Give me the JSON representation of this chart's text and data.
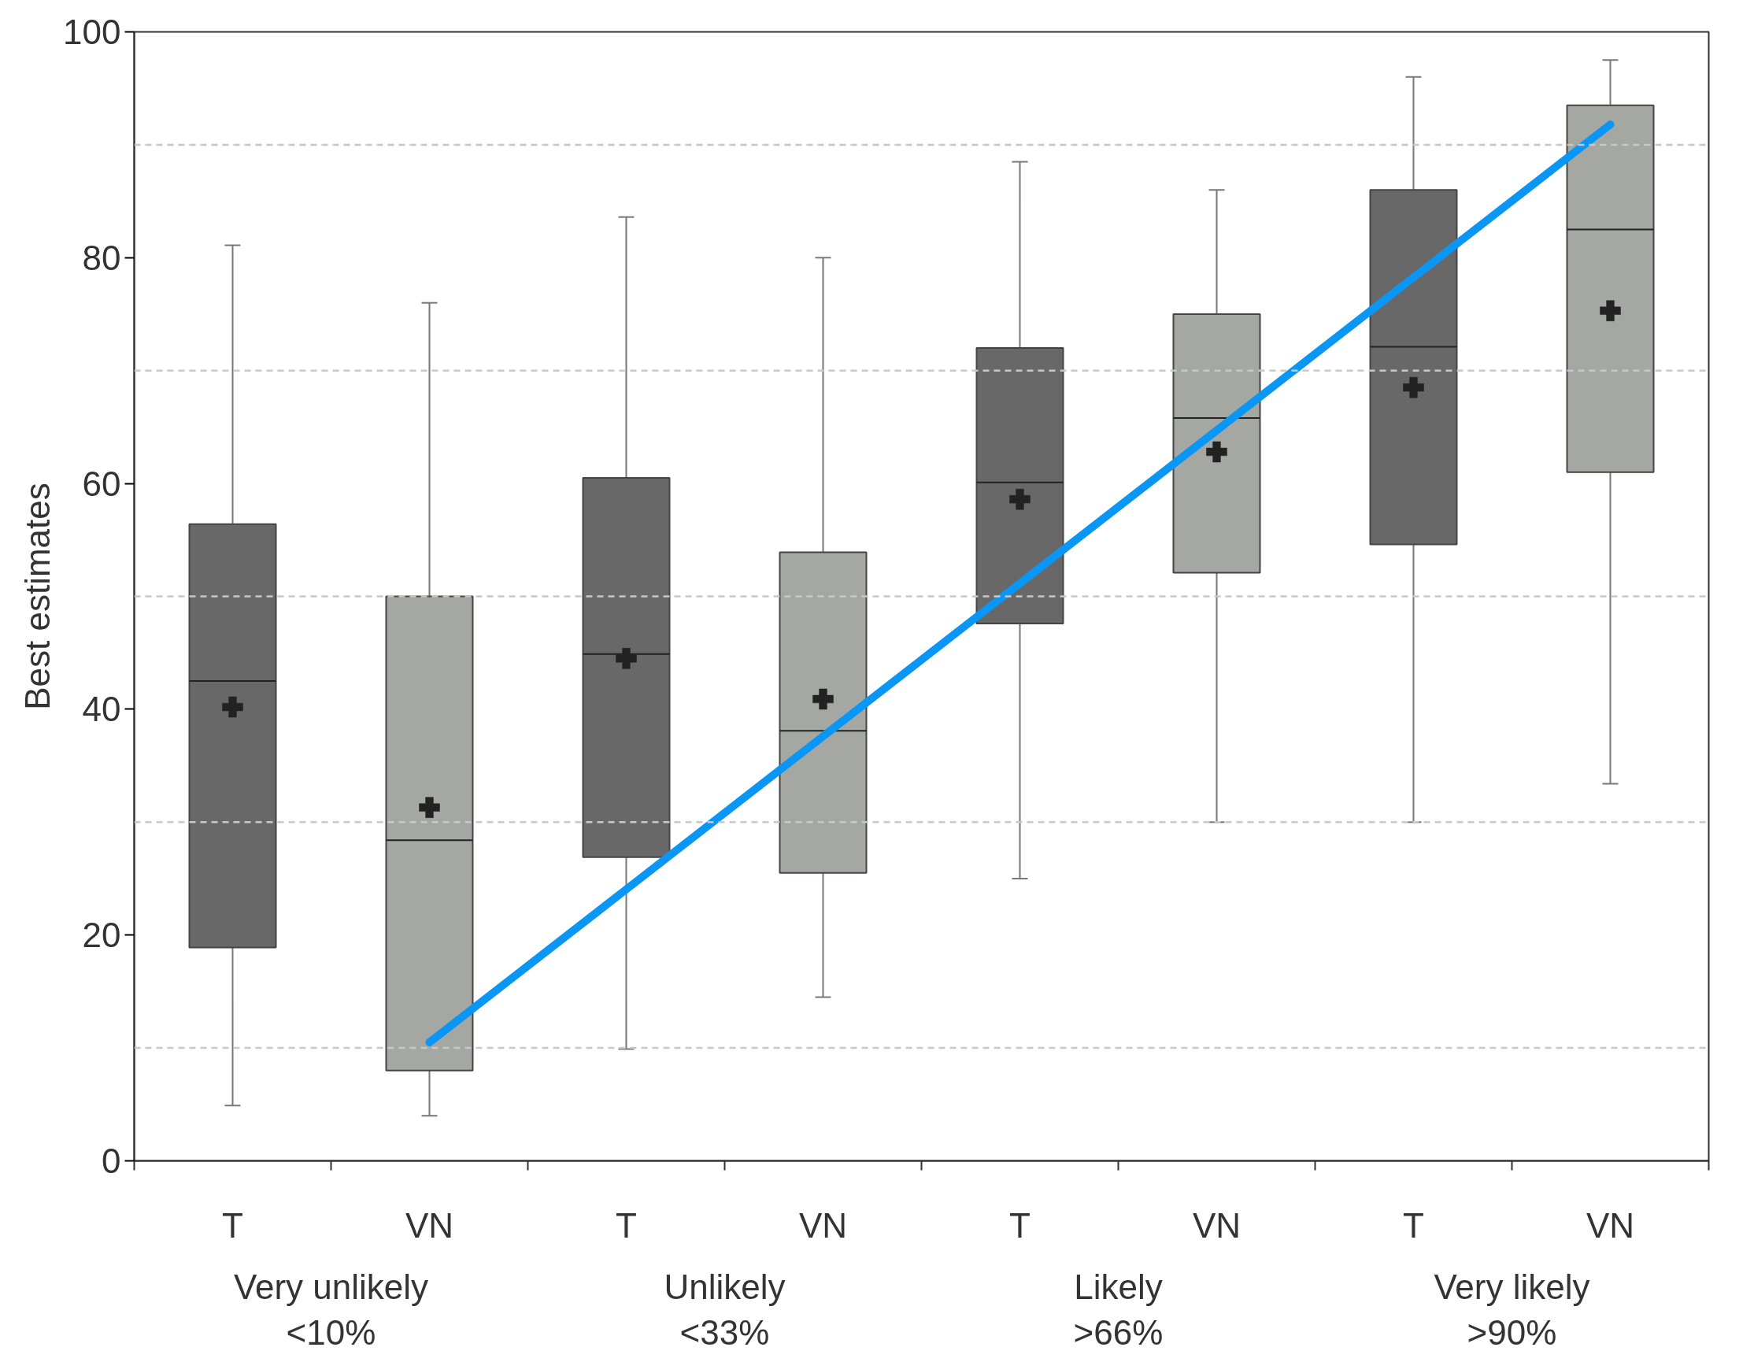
{
  "chart_data": {
    "type": "box",
    "ylabel": "Best estimates",
    "categories": [
      "T",
      "VN",
      "T",
      "VN",
      "T",
      "VN",
      "T",
      "VN"
    ],
    "colors": [
      "#686868",
      "#a4a7a2",
      "#686868",
      "#a4a7a2",
      "#686868",
      "#a4a7a2",
      "#686868",
      "#a4a7a2"
    ],
    "boxes": [
      {
        "low": 4.9,
        "q1": 18.9,
        "median": 42.5,
        "q3": 56.4,
        "high": 81.1,
        "mean": 40.2
      },
      {
        "low": 4,
        "q1": 8,
        "median": 28.4,
        "q3": 50,
        "high": 76,
        "mean": 31.3
      },
      {
        "low": 9.9,
        "q1": 26.9,
        "median": 44.9,
        "q3": 60.5,
        "high": 83.6,
        "mean": 44.5
      },
      {
        "low": 14.5,
        "q1": 25.5,
        "median": 38.1,
        "q3": 53.9,
        "high": 80,
        "mean": 40.9
      },
      {
        "low": 25,
        "q1": 47.6,
        "median": 60.1,
        "q3": 72,
        "high": 88.5,
        "mean": 58.6
      },
      {
        "low": 30,
        "q1": 52.1,
        "median": 65.8,
        "q3": 75,
        "high": 86,
        "mean": 62.8
      },
      {
        "low": 30,
        "q1": 54.6,
        "median": 72.1,
        "q3": 86,
        "high": 96,
        "mean": 68.5
      },
      {
        "low": 33.4,
        "q1": 61,
        "median": 82.5,
        "q3": 93.5,
        "high": 97.5,
        "mean": 75.3
      }
    ],
    "series": [
      {
        "type": "line",
        "values": [
          null,
          10.5,
          24.05,
          37.6,
          51.15,
          64.7,
          78.25,
          91.8
        ],
        "color": "#0a96f5"
      }
    ],
    "ylim": [
      0,
      100
    ],
    "yticks": [
      0,
      20,
      40,
      60,
      80,
      100
    ],
    "grid": false,
    "ref_lines": [
      {
        "axis": "y",
        "value": 10,
        "color": "#c8c8c8",
        "line_style": "dashed"
      },
      {
        "axis": "y",
        "value": 30,
        "color": "#c8c8c8",
        "line_style": "dashed"
      },
      {
        "axis": "y",
        "value": 50,
        "color": "#c8c8c8",
        "line_style": "dashed"
      },
      {
        "axis": "y",
        "value": 70,
        "color": "#c8c8c8",
        "line_style": "dashed"
      },
      {
        "axis": "y",
        "value": 90,
        "color": "#c8c8c8",
        "line_style": "dashed"
      }
    ],
    "annotations": [
      "Very unlikely\n<10%",
      "Unlikely\n<33%",
      "Likely\n>66%",
      "Very likely\n>90%"
    ]
  }
}
